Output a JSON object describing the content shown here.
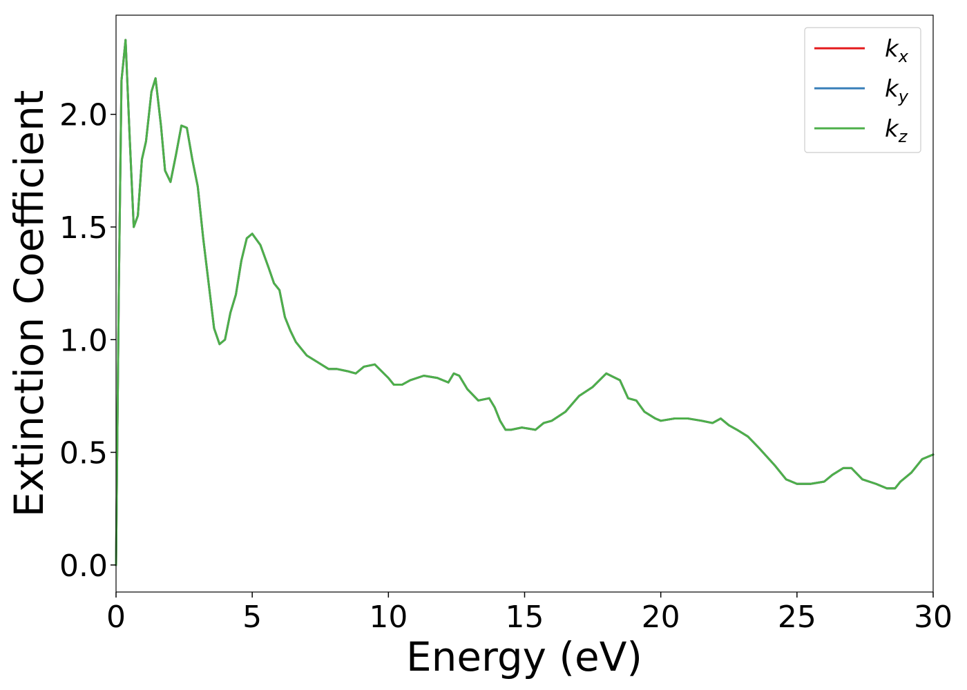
{
  "chart_data": {
    "type": "line",
    "title": "",
    "xlabel": "Energy (eV)",
    "ylabel": "Extinction Coefficient",
    "xlim": [
      0,
      30
    ],
    "ylim": [
      -0.12,
      2.44
    ],
    "xticks": [
      0,
      5,
      10,
      15,
      20,
      25,
      30
    ],
    "xtick_labels": [
      "0",
      "5",
      "10",
      "15",
      "20",
      "25",
      "30"
    ],
    "yticks": [
      0.0,
      0.5,
      1.0,
      1.5,
      2.0
    ],
    "ytick_labels": [
      "0.0",
      "0.5",
      "1.0",
      "1.5",
      "2.0"
    ],
    "grid": false,
    "legend_position": "top-right",
    "x": [
      0,
      0.1,
      0.2,
      0.35,
      0.5,
      0.65,
      0.8,
      0.95,
      1.1,
      1.3,
      1.45,
      1.65,
      1.8,
      2.0,
      2.2,
      2.4,
      2.6,
      2.8,
      3.0,
      3.2,
      3.4,
      3.6,
      3.8,
      4.0,
      4.2,
      4.4,
      4.6,
      4.8,
      5.0,
      5.3,
      5.6,
      5.8,
      6.0,
      6.2,
      6.4,
      6.6,
      7.0,
      7.4,
      7.8,
      8.1,
      8.5,
      8.8,
      9.1,
      9.5,
      10.0,
      10.2,
      10.5,
      10.8,
      11.3,
      11.8,
      12.2,
      12.4,
      12.6,
      12.9,
      13.3,
      13.7,
      13.9,
      14.1,
      14.3,
      14.5,
      14.9,
      15.4,
      15.7,
      16.0,
      16.5,
      17.0,
      17.5,
      18.0,
      18.5,
      18.8,
      19.1,
      19.4,
      19.8,
      20.0,
      20.5,
      21.0,
      21.5,
      21.9,
      22.2,
      22.5,
      22.8,
      23.2,
      23.6,
      24.2,
      24.6,
      25.0,
      25.5,
      26.0,
      26.3,
      26.7,
      27.0,
      27.4,
      27.9,
      28.3,
      28.6,
      28.8,
      29.2,
      29.6,
      30.0
    ],
    "series": [
      {
        "name": "k_x",
        "label_base": "k",
        "label_sub": "x",
        "color": "#e41a1c",
        "values": [
          0.0,
          1.2,
          2.15,
          2.33,
          1.9,
          1.5,
          1.55,
          1.8,
          1.88,
          2.1,
          2.16,
          1.95,
          1.75,
          1.7,
          1.82,
          1.95,
          1.94,
          1.8,
          1.68,
          1.45,
          1.25,
          1.05,
          0.98,
          1.0,
          1.12,
          1.2,
          1.35,
          1.45,
          1.47,
          1.42,
          1.32,
          1.25,
          1.22,
          1.1,
          1.04,
          0.99,
          0.93,
          0.9,
          0.87,
          0.87,
          0.86,
          0.85,
          0.88,
          0.89,
          0.83,
          0.8,
          0.8,
          0.82,
          0.84,
          0.83,
          0.81,
          0.85,
          0.84,
          0.78,
          0.73,
          0.74,
          0.7,
          0.64,
          0.6,
          0.6,
          0.61,
          0.6,
          0.63,
          0.64,
          0.68,
          0.75,
          0.79,
          0.85,
          0.82,
          0.74,
          0.73,
          0.68,
          0.65,
          0.64,
          0.65,
          0.65,
          0.64,
          0.63,
          0.65,
          0.62,
          0.6,
          0.57,
          0.52,
          0.44,
          0.38,
          0.36,
          0.36,
          0.37,
          0.4,
          0.43,
          0.43,
          0.38,
          0.36,
          0.34,
          0.34,
          0.37,
          0.41,
          0.47,
          0.49
        ]
      },
      {
        "name": "k_y",
        "label_base": "k",
        "label_sub": "y",
        "color": "#377eb8",
        "values": [
          0.0,
          1.2,
          2.15,
          2.33,
          1.9,
          1.5,
          1.55,
          1.8,
          1.88,
          2.1,
          2.16,
          1.95,
          1.75,
          1.7,
          1.82,
          1.95,
          1.94,
          1.8,
          1.68,
          1.45,
          1.25,
          1.05,
          0.98,
          1.0,
          1.12,
          1.2,
          1.35,
          1.45,
          1.47,
          1.42,
          1.32,
          1.25,
          1.22,
          1.1,
          1.04,
          0.99,
          0.93,
          0.9,
          0.87,
          0.87,
          0.86,
          0.85,
          0.88,
          0.89,
          0.83,
          0.8,
          0.8,
          0.82,
          0.84,
          0.83,
          0.81,
          0.85,
          0.84,
          0.78,
          0.73,
          0.74,
          0.7,
          0.64,
          0.6,
          0.6,
          0.61,
          0.6,
          0.63,
          0.64,
          0.68,
          0.75,
          0.79,
          0.85,
          0.82,
          0.74,
          0.73,
          0.68,
          0.65,
          0.64,
          0.65,
          0.65,
          0.64,
          0.63,
          0.65,
          0.62,
          0.6,
          0.57,
          0.52,
          0.44,
          0.38,
          0.36,
          0.36,
          0.37,
          0.4,
          0.43,
          0.43,
          0.38,
          0.36,
          0.34,
          0.34,
          0.37,
          0.41,
          0.47,
          0.49
        ]
      },
      {
        "name": "k_z",
        "label_base": "k",
        "label_sub": "z",
        "color": "#4daf4a",
        "values": [
          0.0,
          1.2,
          2.15,
          2.33,
          1.9,
          1.5,
          1.55,
          1.8,
          1.88,
          2.1,
          2.16,
          1.95,
          1.75,
          1.7,
          1.82,
          1.95,
          1.94,
          1.8,
          1.68,
          1.45,
          1.25,
          1.05,
          0.98,
          1.0,
          1.12,
          1.2,
          1.35,
          1.45,
          1.47,
          1.42,
          1.32,
          1.25,
          1.22,
          1.1,
          1.04,
          0.99,
          0.93,
          0.9,
          0.87,
          0.87,
          0.86,
          0.85,
          0.88,
          0.89,
          0.83,
          0.8,
          0.8,
          0.82,
          0.84,
          0.83,
          0.81,
          0.85,
          0.84,
          0.78,
          0.73,
          0.74,
          0.7,
          0.64,
          0.6,
          0.6,
          0.61,
          0.6,
          0.63,
          0.64,
          0.68,
          0.75,
          0.79,
          0.85,
          0.82,
          0.74,
          0.73,
          0.68,
          0.65,
          0.64,
          0.65,
          0.65,
          0.64,
          0.63,
          0.65,
          0.62,
          0.6,
          0.57,
          0.52,
          0.44,
          0.38,
          0.36,
          0.36,
          0.37,
          0.4,
          0.43,
          0.43,
          0.38,
          0.36,
          0.34,
          0.34,
          0.37,
          0.41,
          0.47,
          0.49
        ]
      }
    ]
  }
}
